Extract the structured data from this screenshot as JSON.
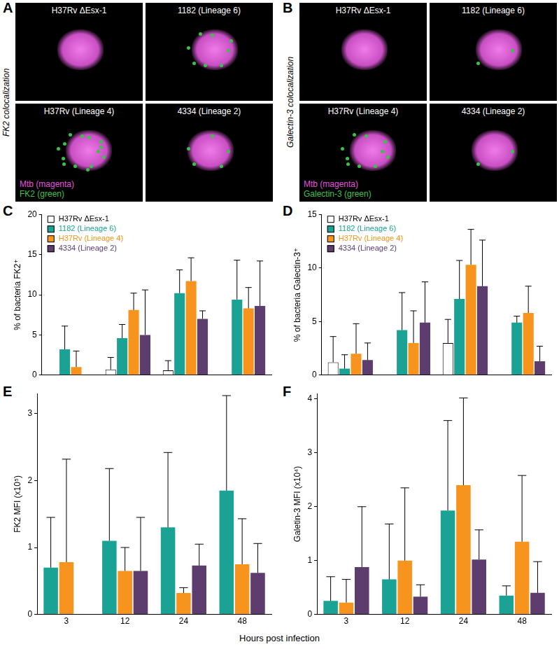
{
  "panel_letters": [
    "A",
    "B",
    "C",
    "D",
    "E",
    "F"
  ],
  "image_panels": [
    {
      "side_label": "FK2 colocalization",
      "tiles": [
        "H37Rv ΔEsx-1",
        "1182 (Lineage 6)",
        "H37Rv (Lineage 4)",
        "4334 (Lineage 2)"
      ],
      "stain_legend": [
        {
          "text": "Mtb (magenta)",
          "color": "#e055dc"
        },
        {
          "text": "FK2 (green)",
          "color": "#3fc24f"
        }
      ]
    },
    {
      "side_label": "Galectin-3 colocalization",
      "tiles": [
        "H37Rv ΔEsx-1",
        "1182 (Lineage 6)",
        "H37Rv (Lineage 4)",
        "4334 (Lineage 2)"
      ],
      "stain_legend": [
        {
          "text": "Mtb (magenta)",
          "color": "#e055dc"
        },
        {
          "text": "Galectin-3 (green)",
          "color": "#3fc24f"
        }
      ]
    }
  ],
  "shared_xlabel": "Hours post infection",
  "chart_data": [
    {
      "type": "bar",
      "ylabel": "% of bacteria FK2⁺",
      "categories": [
        "3",
        "12",
        "24",
        "48"
      ],
      "series": [
        {
          "name": "H37Rv ΔEsx-1",
          "color": "#ffffff",
          "values": [
            null,
            0.7,
            0.6,
            null
          ],
          "errors": [
            null,
            1.5,
            1.2,
            null
          ]
        },
        {
          "name": "1182 (Lineage 6)",
          "color": "#1aa394",
          "values": [
            3.2,
            4.6,
            10.2,
            9.4
          ],
          "errors": [
            2.9,
            1.7,
            2.9,
            4.9
          ]
        },
        {
          "name": "H37Rv (Lineage 4)",
          "color": "#f7941d",
          "values": [
            1.0,
            8.1,
            11.7,
            8.3
          ],
          "errors": [
            2.0,
            2.1,
            2.9,
            2.6
          ]
        },
        {
          "name": "4334 (Lineage 2)",
          "color": "#5c3d6e",
          "values": [
            null,
            5.0,
            7.0,
            8.6
          ],
          "errors": [
            null,
            5.6,
            1.0,
            5.6
          ]
        }
      ],
      "ylim": [
        0,
        20
      ],
      "yticks": [
        0,
        5,
        10,
        15,
        20
      ],
      "legend": "upper left",
      "tick_labels": "y",
      "grid": false
    },
    {
      "type": "bar",
      "ylabel": "% of bacteria Galectin-3⁺",
      "categories": [
        "3",
        "12",
        "24",
        "48"
      ],
      "series": [
        {
          "name": "H37Rv ΔEsx-1",
          "color": "#ffffff",
          "values": [
            1.2,
            null,
            3.0,
            null
          ],
          "errors": [
            2.4,
            null,
            2.2,
            null
          ]
        },
        {
          "name": "1182 (Lineage 6)",
          "color": "#1aa394",
          "values": [
            0.6,
            4.2,
            7.1,
            4.9
          ],
          "errors": [
            1.3,
            3.5,
            3.6,
            0.6
          ]
        },
        {
          "name": "H37Rv (Lineage 4)",
          "color": "#f7941d",
          "values": [
            2.0,
            3.0,
            10.3,
            5.8
          ],
          "errors": [
            2.8,
            3.0,
            3.3,
            2.5
          ]
        },
        {
          "name": "4334 (Lineage 2)",
          "color": "#5c3d6e",
          "values": [
            1.4,
            4.9,
            8.3,
            1.3
          ],
          "errors": [
            1.6,
            3.8,
            4.3,
            1.4
          ]
        }
      ],
      "ylim": [
        0,
        15
      ],
      "yticks": [
        0,
        5,
        10,
        15
      ],
      "legend": "upper left",
      "tick_labels": "y",
      "grid": false
    },
    {
      "type": "bar",
      "ylabel": "FK2 MFI (x10⁵)",
      "categories": [
        "3",
        "12",
        "24",
        "48"
      ],
      "series": [
        {
          "color": "#1aa394",
          "values": [
            0.7,
            1.1,
            1.3,
            1.85
          ],
          "errors": [
            0.75,
            1.08,
            1.12,
            1.42
          ]
        },
        {
          "color": "#f7941d",
          "values": [
            0.78,
            0.65,
            0.32,
            0.75
          ],
          "errors": [
            1.54,
            0.35,
            0.08,
            0.68
          ]
        },
        {
          "color": "#5c3d6e",
          "values": [
            null,
            0.65,
            0.73,
            0.62
          ],
          "errors": [
            null,
            0.8,
            0.32,
            0.44
          ]
        }
      ],
      "ylim": [
        0,
        3.3
      ],
      "yticks": [
        0,
        1,
        2,
        3
      ],
      "grid": false
    },
    {
      "type": "bar",
      "ylabel": "Galetin-3 MFI (x10⁴)",
      "categories": [
        "3",
        "12",
        "24",
        "48"
      ],
      "series": [
        {
          "color": "#1aa394",
          "values": [
            0.25,
            0.65,
            1.93,
            0.35
          ],
          "errors": [
            0.45,
            1.03,
            1.67,
            0.18
          ]
        },
        {
          "color": "#f7941d",
          "values": [
            0.22,
            1.0,
            2.4,
            1.35
          ],
          "errors": [
            0.43,
            1.35,
            1.62,
            1.23
          ]
        },
        {
          "color": "#5c3d6e",
          "values": [
            0.88,
            0.33,
            1.02,
            0.4
          ],
          "errors": [
            1.12,
            0.22,
            0.55,
            0.58
          ]
        }
      ],
      "ylim": [
        0,
        4.1
      ],
      "yticks": [
        0,
        1,
        2,
        3,
        4
      ],
      "grid": false
    }
  ]
}
